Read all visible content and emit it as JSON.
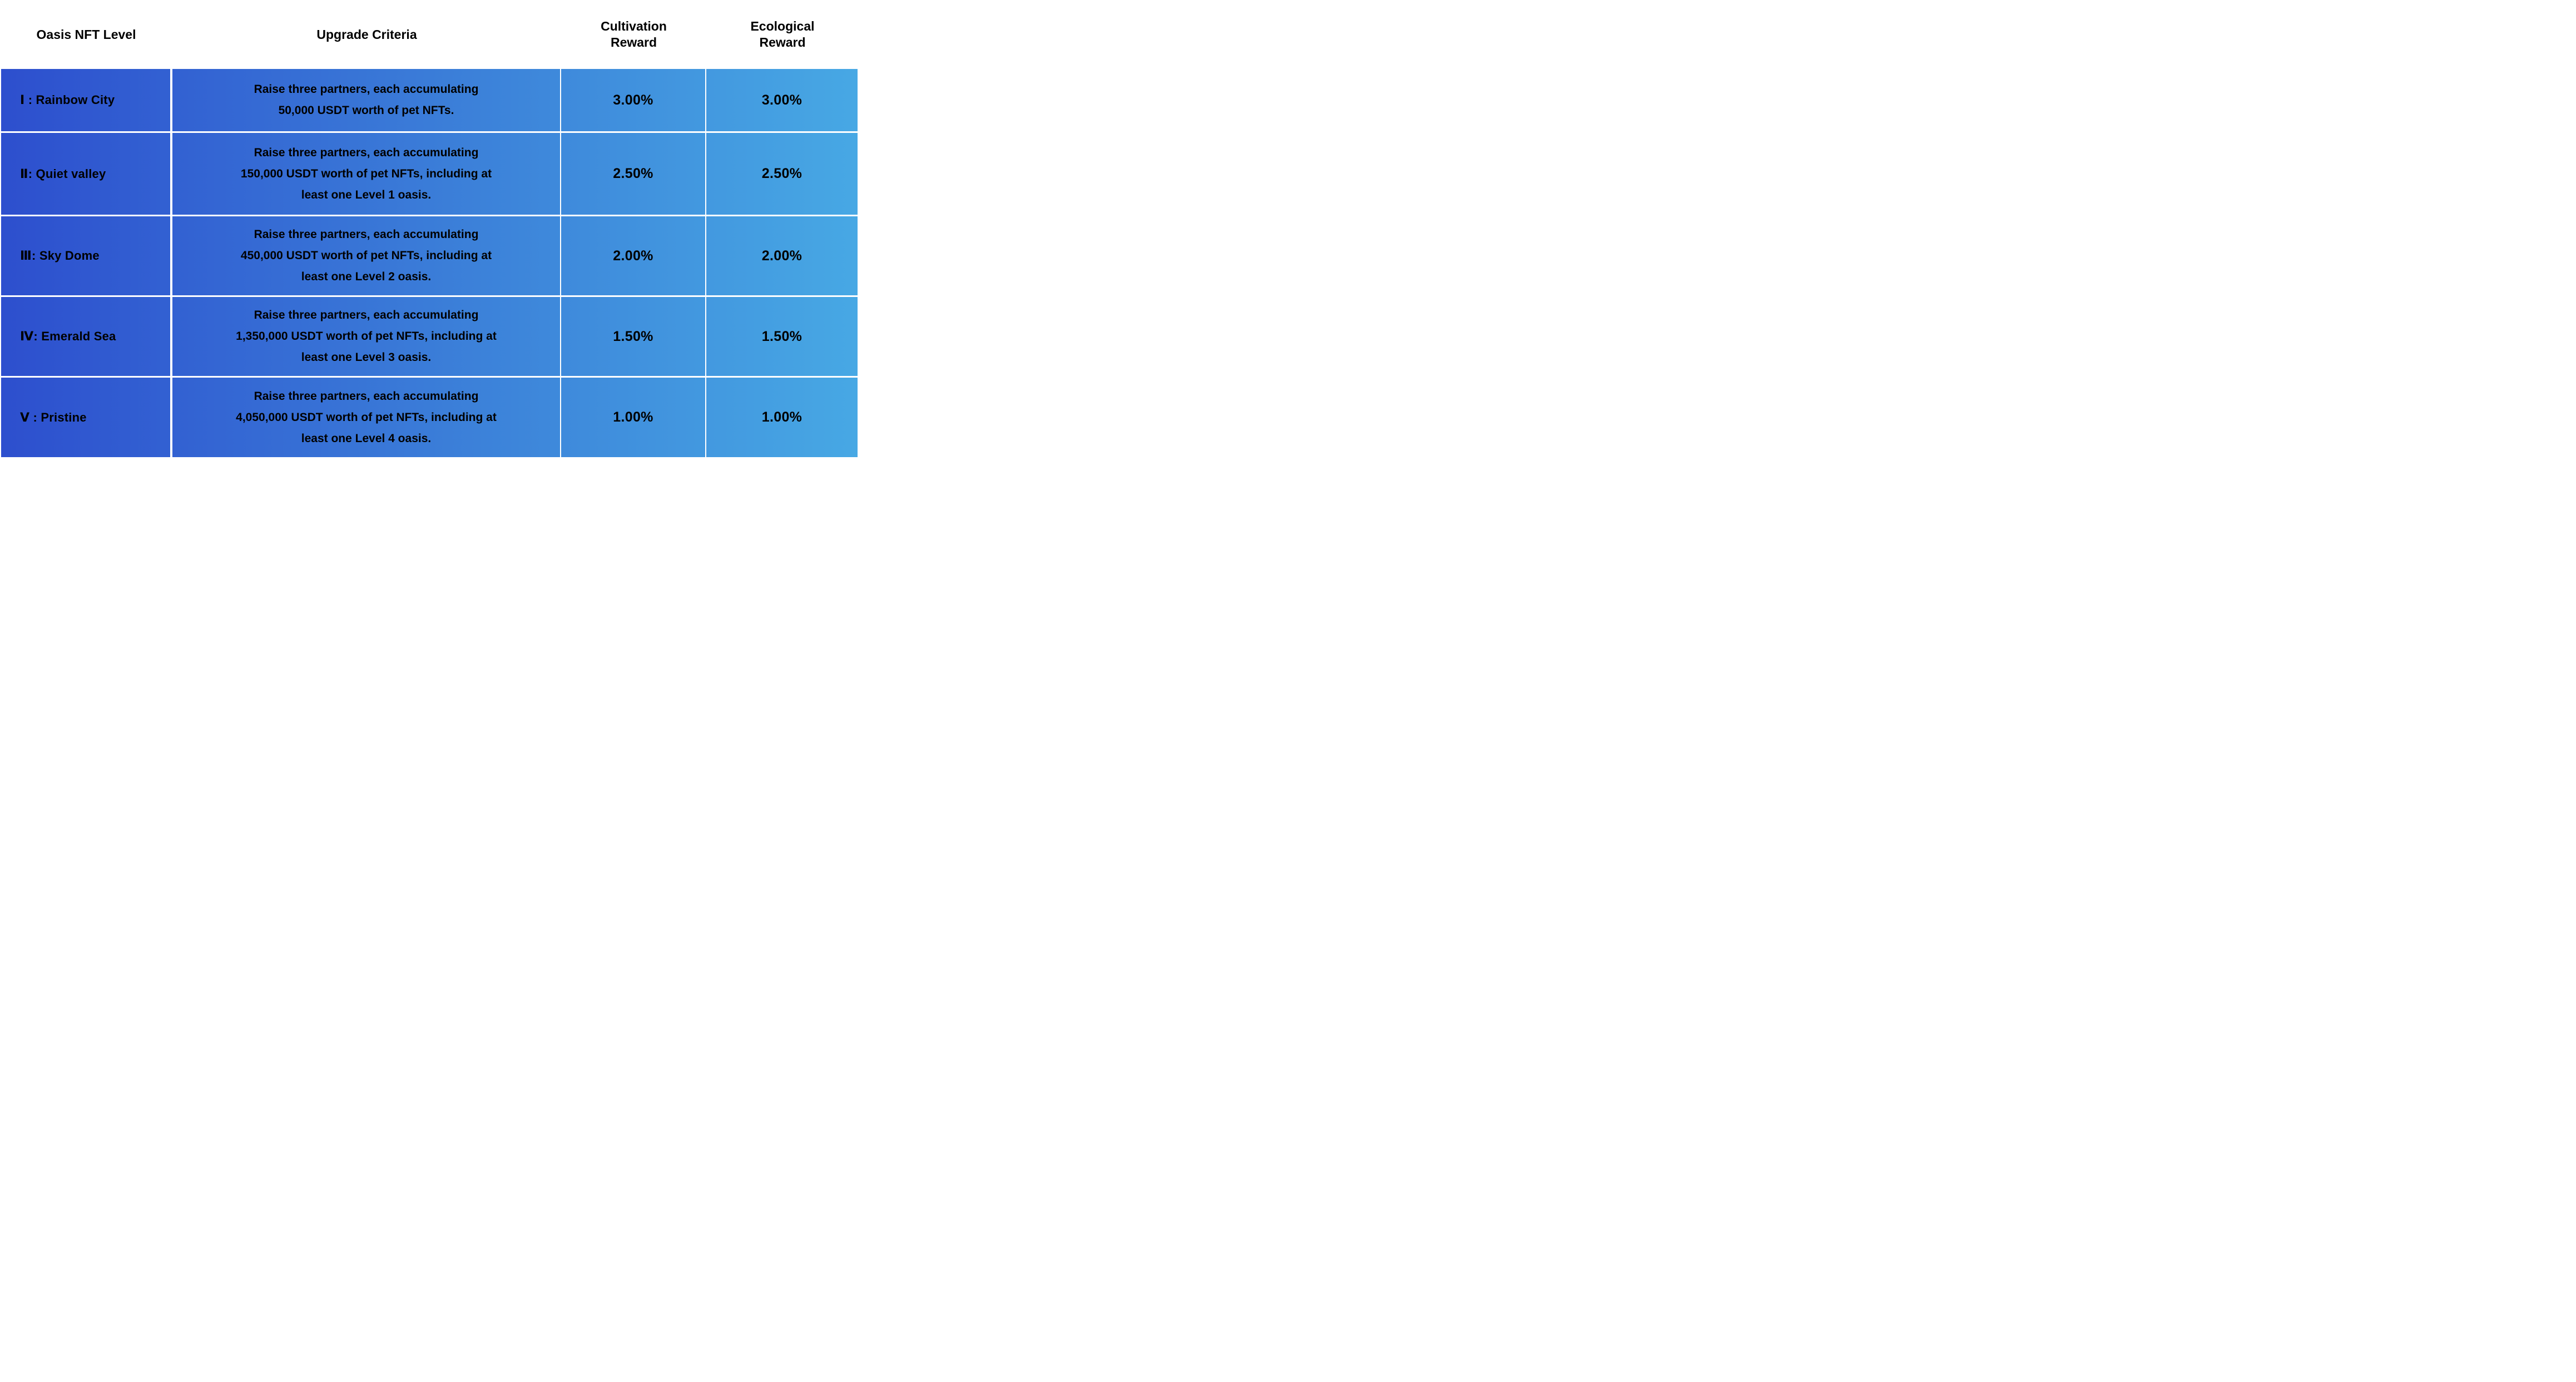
{
  "table": {
    "header": {
      "level": "Oasis NFT Level",
      "criteria": "Upgrade Criteria",
      "cultivation": "Cultivation\nReward",
      "ecological": "Ecological\nReward"
    },
    "rows": [
      {
        "level": "Ⅰ : Rainbow City",
        "criteria": "Raise three partners, each accumulating\n50,000 USDT worth of pet NFTs.",
        "cultivation_reward": "3.00%",
        "ecological_reward": "3.00%"
      },
      {
        "level": "Ⅱ: Quiet valley",
        "criteria": "Raise three partners, each accumulating\n150,000 USDT worth of pet NFTs, including at\nleast one Level 1 oasis.",
        "cultivation_reward": "2.50%",
        "ecological_reward": "2.50%"
      },
      {
        "level": "Ⅲ: Sky Dome",
        "criteria": "Raise three partners, each accumulating\n450,000 USDT worth of pet NFTs, including at\nleast one Level 2 oasis.",
        "cultivation_reward": "2.00%",
        "ecological_reward": "2.00%"
      },
      {
        "level": "Ⅳ: Emerald Sea",
        "criteria": "Raise three partners, each accumulating\n1,350,000 USDT worth of pet NFTs, including at\nleast one Level 3 oasis.",
        "cultivation_reward": "1.50%",
        "ecological_reward": "1.50%"
      },
      {
        "level": "Ⅴ : Pristine",
        "criteria": "Raise three partners, each accumulating\n4,050,000 USDT worth of pet NFTs, including at\nleast one Level 4 oasis.",
        "cultivation_reward": "1.00%",
        "ecological_reward": "1.00%"
      }
    ]
  },
  "colors": {
    "gradient_left": "#2D4FCE",
    "gradient_right": "#47A8E4",
    "grid_line": "#FFFFFF",
    "text": "#000000"
  }
}
